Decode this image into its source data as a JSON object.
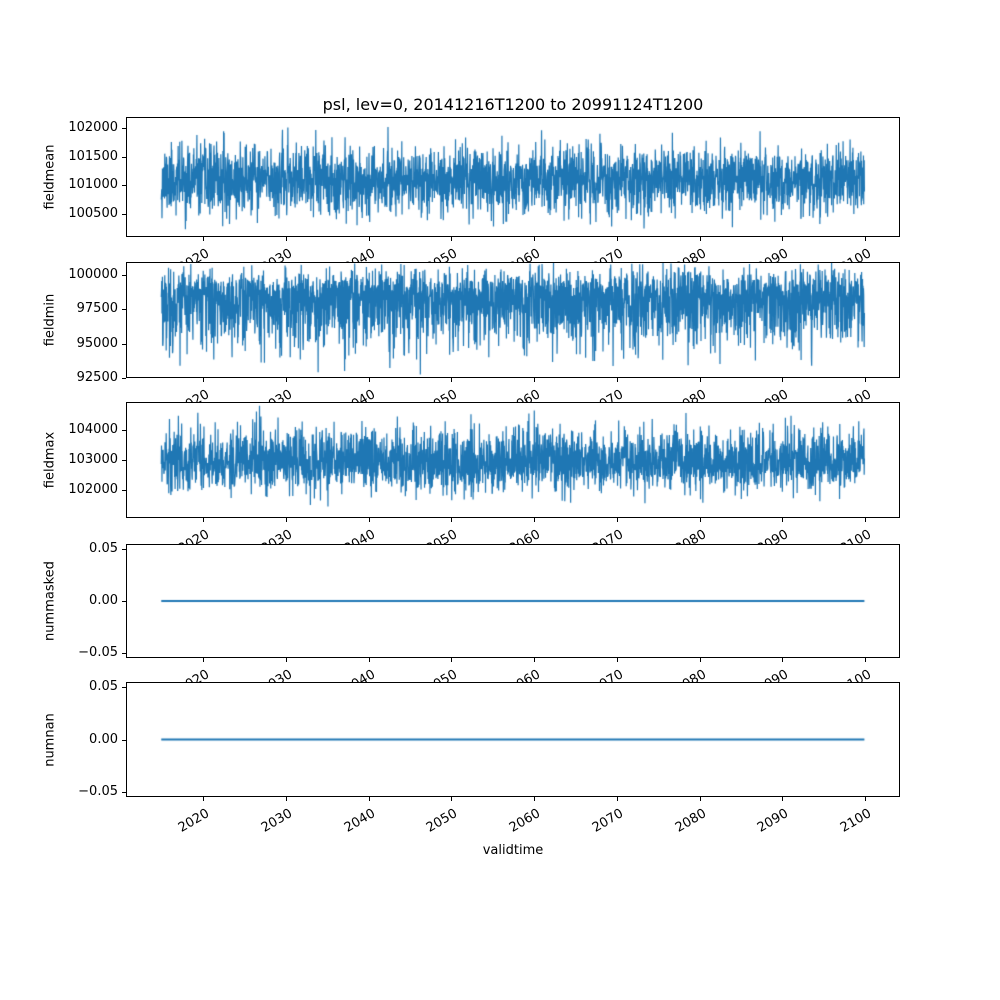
{
  "figure": {
    "background": "#ffffff",
    "accent_color": "#1f77b4"
  },
  "chart_data": {
    "type": "line",
    "title": "psl, lev=0, 20141216T1200 to 20991124T1200",
    "xlabel": "validtime",
    "grid": false,
    "legend": "none",
    "line_color": "#1f77b4",
    "xlim": [
      2010.7,
      2104.2
    ],
    "x_data_range": [
      2014.96,
      2099.9
    ],
    "x_tick_values": [
      2020,
      2030,
      2040,
      2050,
      2060,
      2070,
      2080,
      2090,
      2100
    ],
    "x_tick_labels": [
      "2020",
      "2030",
      "2040",
      "2050",
      "2060",
      "2070",
      "2080",
      "2090",
      "2100"
    ],
    "subplots": [
      {
        "ylabel": "fieldmean",
        "ytick_values": [
          102000,
          101500,
          101000,
          100500
        ],
        "ytick_labels": [
          "102000",
          "101500",
          "101000",
          "100500"
        ],
        "ylim": [
          100100,
          102190
        ],
        "series": {
          "kind": "noise",
          "seed": 11,
          "base": 101100,
          "sigma": 290,
          "down_skew": 1.05,
          "up_skew": 1.0,
          "min": 100230,
          "max": 102060,
          "approx": {
            "mean": 101100,
            "min": 100250,
            "max": 102050
          }
        }
      },
      {
        "ylabel": "fieldmin",
        "ytick_values": [
          100000,
          97500,
          95000,
          92500
        ],
        "ytick_labels": [
          "100000",
          "97500",
          "95000",
          "92500"
        ],
        "ylim": [
          92480,
          100960
        ],
        "series": {
          "kind": "noise",
          "seed": 22,
          "base": 98300,
          "sigma": 1500,
          "down_skew": 1.25,
          "up_skew": 0.75,
          "min": 92600,
          "max": 100900,
          "approx": {
            "mean": 97800,
            "min": 92700,
            "max": 100900
          }
        }
      },
      {
        "ylabel": "fieldmax",
        "ytick_values": [
          104000,
          103000,
          102000
        ],
        "ytick_labels": [
          "104000",
          "103000",
          "102000"
        ],
        "ylim": [
          101070,
          104930
        ],
        "series": {
          "kind": "noise",
          "seed": 33,
          "base": 102900,
          "sigma": 480,
          "down_skew": 0.95,
          "up_skew": 1.25,
          "min": 101450,
          "max": 104820,
          "approx": {
            "mean": 102950,
            "min": 101500,
            "max": 104800
          }
        }
      },
      {
        "ylabel": "nummasked",
        "ytick_values": [
          0.05,
          0.0,
          -0.05
        ],
        "ytick_labels": [
          "0.05",
          "0.00",
          "−0.05"
        ],
        "ylim": [
          -0.055,
          0.055
        ],
        "series": {
          "kind": "flat",
          "value": 0,
          "value_label": "0.00"
        }
      },
      {
        "ylabel": "numnan",
        "ytick_values": [
          0.05,
          0.0,
          -0.05
        ],
        "ytick_labels": [
          "0.05",
          "0.00",
          "−0.05"
        ],
        "ylim": [
          -0.055,
          0.055
        ],
        "series": {
          "kind": "flat",
          "value": 0,
          "value_label": "0.00"
        }
      }
    ]
  }
}
